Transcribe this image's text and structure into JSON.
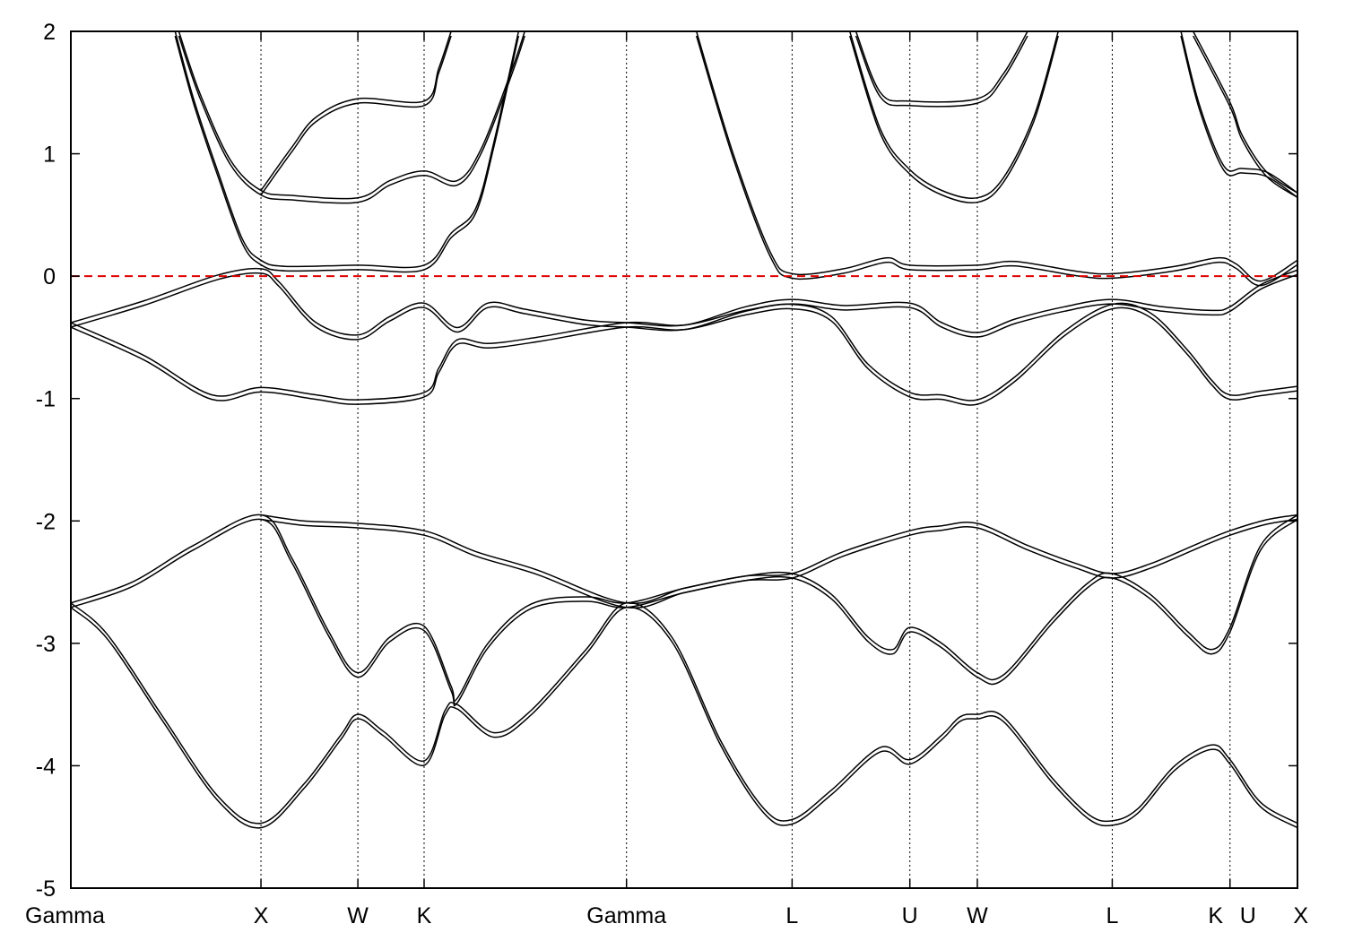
{
  "chart_data": {
    "type": "line",
    "title": "",
    "xlabel": "",
    "ylabel": "",
    "ylim": [
      -5,
      2
    ],
    "yticks": [
      -5,
      -4,
      -3,
      -2,
      -1,
      0,
      1,
      2
    ],
    "grid": false,
    "legend": "none",
    "fermi_level": 0,
    "colors": {
      "bands": "#000000",
      "fermi": "#e00000",
      "frame": "#000000"
    },
    "xlim": [
      0,
      10
    ],
    "kpoints": [
      {
        "label": "Gamma",
        "x": 0.0
      },
      {
        "label": "X",
        "x": 1.55
      },
      {
        "label": "W",
        "x": 2.34
      },
      {
        "label": "K",
        "x": 2.88
      },
      {
        "label": "Gamma",
        "x": 4.53
      },
      {
        "label": "L",
        "x": 5.88
      },
      {
        "label": "U",
        "x": 6.84
      },
      {
        "label": "W",
        "x": 7.39
      },
      {
        "label": "L",
        "x": 8.49
      },
      {
        "label": "K",
        "x": 9.45
      },
      {
        "label": "U",
        "x": 9.45
      },
      {
        "label": "X",
        "x": 10.0
      }
    ],
    "series": [
      {
        "values": [
          [
            0,
            -2.67
          ],
          [
            0.3,
            -2.93
          ],
          [
            0.75,
            -3.6
          ],
          [
            1.2,
            -4.25
          ],
          [
            1.55,
            -4.47
          ],
          [
            1.9,
            -4.15
          ],
          [
            2.2,
            -3.75
          ],
          [
            2.34,
            -3.58
          ],
          [
            2.55,
            -3.72
          ],
          [
            2.88,
            -3.96
          ],
          [
            3.05,
            -3.55
          ],
          [
            3.15,
            -3.5
          ],
          [
            3.45,
            -3.73
          ],
          [
            3.75,
            -3.55
          ],
          [
            4.2,
            -3.05
          ],
          [
            4.53,
            -2.67
          ],
          [
            4.9,
            -2.95
          ],
          [
            5.3,
            -3.8
          ],
          [
            5.65,
            -4.35
          ],
          [
            5.88,
            -4.44
          ],
          [
            6.2,
            -4.2
          ],
          [
            6.6,
            -3.85
          ],
          [
            6.84,
            -3.95
          ],
          [
            7.1,
            -3.75
          ],
          [
            7.25,
            -3.6
          ],
          [
            7.39,
            -3.58
          ],
          [
            7.6,
            -3.6
          ],
          [
            8.0,
            -4.1
          ],
          [
            8.3,
            -4.4
          ],
          [
            8.49,
            -4.45
          ],
          [
            8.7,
            -4.35
          ],
          [
            9.0,
            -4.0
          ],
          [
            9.3,
            -3.83
          ],
          [
            9.45,
            -3.95
          ],
          [
            9.7,
            -4.3
          ],
          [
            10.0,
            -4.47
          ]
        ]
      },
      {
        "values": [
          [
            0,
            -2.67
          ],
          [
            0.5,
            -2.5
          ],
          [
            1.0,
            -2.2
          ],
          [
            1.55,
            -1.95
          ],
          [
            1.8,
            -2.3
          ],
          [
            2.1,
            -2.9
          ],
          [
            2.34,
            -3.24
          ],
          [
            2.6,
            -2.95
          ],
          [
            2.88,
            -2.86
          ],
          [
            3.1,
            -3.35
          ],
          [
            3.15,
            -3.45
          ],
          [
            3.4,
            -3.0
          ],
          [
            3.75,
            -2.68
          ],
          [
            4.2,
            -2.62
          ],
          [
            4.53,
            -2.67
          ],
          [
            5.0,
            -2.55
          ],
          [
            5.5,
            -2.45
          ],
          [
            5.88,
            -2.43
          ],
          [
            6.2,
            -2.6
          ],
          [
            6.5,
            -2.95
          ],
          [
            6.7,
            -3.05
          ],
          [
            6.84,
            -2.87
          ],
          [
            7.1,
            -3.0
          ],
          [
            7.39,
            -3.24
          ],
          [
            7.6,
            -3.26
          ],
          [
            8.0,
            -2.8
          ],
          [
            8.3,
            -2.5
          ],
          [
            8.49,
            -2.43
          ],
          [
            8.8,
            -2.6
          ],
          [
            9.1,
            -2.9
          ],
          [
            9.3,
            -3.05
          ],
          [
            9.45,
            -2.87
          ],
          [
            9.7,
            -2.2
          ],
          [
            10.0,
            -1.95
          ]
        ]
      },
      {
        "values": [
          [
            1.55,
            -1.95
          ],
          [
            1.9,
            -2.0
          ],
          [
            2.34,
            -2.02
          ],
          [
            2.88,
            -2.08
          ],
          [
            3.3,
            -2.25
          ],
          [
            3.8,
            -2.4
          ],
          [
            4.53,
            -2.67
          ],
          [
            5.0,
            -2.55
          ],
          [
            5.5,
            -2.45
          ],
          [
            5.88,
            -2.43
          ],
          [
            6.3,
            -2.25
          ],
          [
            6.84,
            -2.08
          ],
          [
            7.1,
            -2.04
          ],
          [
            7.39,
            -2.02
          ],
          [
            7.8,
            -2.2
          ],
          [
            8.2,
            -2.35
          ],
          [
            8.49,
            -2.43
          ],
          [
            8.8,
            -2.35
          ],
          [
            9.2,
            -2.18
          ],
          [
            9.45,
            -2.08
          ],
          [
            9.75,
            -1.99
          ],
          [
            10.0,
            -1.95
          ]
        ]
      },
      {
        "values": [
          [
            0,
            -0.38
          ],
          [
            0.6,
            -0.65
          ],
          [
            1.15,
            -0.97
          ],
          [
            1.55,
            -0.91
          ],
          [
            2.0,
            -0.97
          ],
          [
            2.34,
            -1.01
          ],
          [
            2.88,
            -0.95
          ],
          [
            3.0,
            -0.75
          ],
          [
            3.15,
            -0.52
          ],
          [
            3.4,
            -0.55
          ],
          [
            3.8,
            -0.5
          ],
          [
            4.53,
            -0.38
          ],
          [
            5.0,
            -0.4
          ],
          [
            5.5,
            -0.28
          ],
          [
            5.88,
            -0.23
          ],
          [
            6.2,
            -0.33
          ],
          [
            6.5,
            -0.72
          ],
          [
            6.84,
            -0.95
          ],
          [
            7.1,
            -0.97
          ],
          [
            7.39,
            -1.01
          ],
          [
            7.7,
            -0.82
          ],
          [
            8.1,
            -0.45
          ],
          [
            8.49,
            -0.23
          ],
          [
            8.8,
            -0.3
          ],
          [
            9.1,
            -0.6
          ],
          [
            9.3,
            -0.85
          ],
          [
            9.45,
            -0.97
          ],
          [
            9.7,
            -0.94
          ],
          [
            10.0,
            -0.9
          ]
        ]
      },
      {
        "values": [
          [
            0,
            -0.38
          ],
          [
            0.6,
            -0.2
          ],
          [
            1.2,
            0.01
          ],
          [
            1.55,
            0.06
          ],
          [
            1.7,
            -0.05
          ],
          [
            2.0,
            -0.38
          ],
          [
            2.34,
            -0.48
          ],
          [
            2.6,
            -0.33
          ],
          [
            2.88,
            -0.22
          ],
          [
            3.15,
            -0.42
          ],
          [
            3.4,
            -0.22
          ],
          [
            3.7,
            -0.27
          ],
          [
            4.2,
            -0.36
          ],
          [
            4.53,
            -0.38
          ],
          [
            5.0,
            -0.4
          ],
          [
            5.5,
            -0.25
          ],
          [
            5.88,
            -0.19
          ],
          [
            6.3,
            -0.24
          ],
          [
            6.84,
            -0.22
          ],
          [
            7.1,
            -0.38
          ],
          [
            7.39,
            -0.46
          ],
          [
            7.7,
            -0.35
          ],
          [
            8.1,
            -0.25
          ],
          [
            8.49,
            -0.19
          ],
          [
            8.9,
            -0.25
          ],
          [
            9.3,
            -0.28
          ],
          [
            9.45,
            -0.25
          ],
          [
            9.7,
            -0.07
          ],
          [
            10.0,
            0.05
          ]
        ]
      },
      {
        "values": [
          [
            0.85,
            2.0
          ],
          [
            1.0,
            1.45
          ],
          [
            1.2,
            0.85
          ],
          [
            1.4,
            0.3
          ],
          [
            1.55,
            0.13
          ],
          [
            1.75,
            0.08
          ],
          [
            2.34,
            0.09
          ],
          [
            2.88,
            0.09
          ],
          [
            3.1,
            0.35
          ],
          [
            3.3,
            0.55
          ],
          [
            3.45,
            1.1
          ],
          [
            3.65,
            2.0
          ]
        ]
      },
      {
        "values": [
          [
            0.88,
            2.0
          ],
          [
            1.05,
            1.5
          ],
          [
            1.3,
            0.95
          ],
          [
            1.55,
            0.7
          ],
          [
            1.8,
            0.66
          ],
          [
            2.34,
            0.64
          ],
          [
            2.6,
            0.78
          ],
          [
            2.88,
            0.86
          ],
          [
            3.15,
            0.78
          ],
          [
            3.35,
            1.05
          ],
          [
            3.6,
            1.7
          ],
          [
            3.7,
            2.0
          ]
        ]
      },
      {
        "values": [
          [
            1.55,
            0.7
          ],
          [
            1.8,
            1.05
          ],
          [
            2.0,
            1.3
          ],
          [
            2.34,
            1.45
          ],
          [
            2.88,
            1.43
          ],
          [
            3.0,
            1.7
          ],
          [
            3.1,
            2.0
          ]
        ]
      },
      {
        "values": [
          [
            5.1,
            2.0
          ],
          [
            5.4,
            1.0
          ],
          [
            5.7,
            0.2
          ],
          [
            5.88,
            0.02
          ],
          [
            6.3,
            0.06
          ],
          [
            6.65,
            0.15
          ],
          [
            6.84,
            0.09
          ],
          [
            7.39,
            0.09
          ],
          [
            7.7,
            0.12
          ],
          [
            8.2,
            0.04
          ],
          [
            8.49,
            0.02
          ],
          [
            9.0,
            0.08
          ],
          [
            9.35,
            0.15
          ],
          [
            9.5,
            0.1
          ],
          [
            9.7,
            -0.04
          ],
          [
            10.0,
            0.13
          ]
        ]
      },
      {
        "values": [
          [
            6.4,
            2.0
          ],
          [
            6.6,
            1.5
          ],
          [
            6.84,
            1.43
          ],
          [
            7.39,
            1.45
          ],
          [
            7.6,
            1.65
          ],
          [
            7.8,
            2.0
          ]
        ]
      },
      {
        "values": [
          [
            6.35,
            2.0
          ],
          [
            6.6,
            1.2
          ],
          [
            6.84,
            0.87
          ],
          [
            7.1,
            0.7
          ],
          [
            7.39,
            0.64
          ],
          [
            7.6,
            0.8
          ],
          [
            7.85,
            1.3
          ],
          [
            8.05,
            2.0
          ]
        ]
      },
      {
        "values": [
          [
            9.15,
            2.0
          ],
          [
            9.45,
            1.42
          ],
          [
            9.55,
            1.15
          ],
          [
            9.75,
            0.85
          ],
          [
            10.0,
            0.68
          ]
        ]
      },
      {
        "values": [
          [
            9.05,
            2.0
          ],
          [
            9.2,
            1.4
          ],
          [
            9.4,
            0.9
          ],
          [
            9.55,
            0.88
          ],
          [
            9.75,
            0.85
          ],
          [
            10.0,
            0.68
          ]
        ]
      }
    ]
  }
}
